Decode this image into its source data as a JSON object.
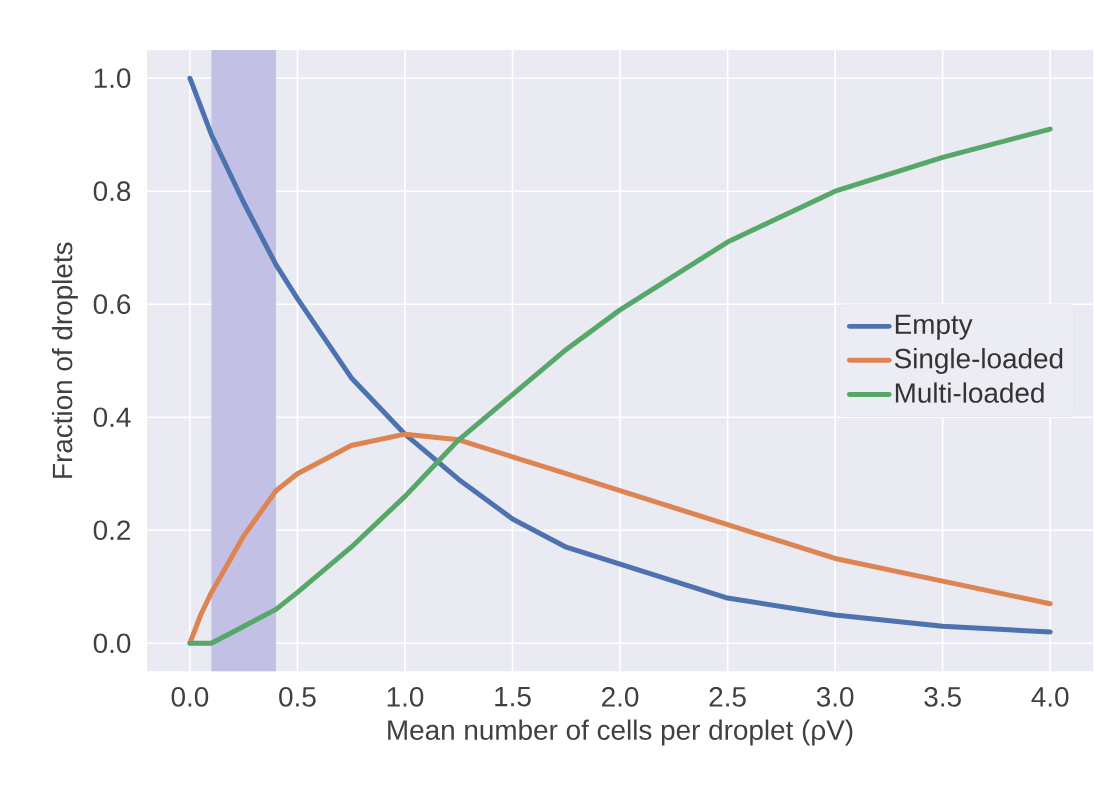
{
  "chart_data": {
    "type": "line",
    "xlabel": "Mean number of cells per droplet (ρV)",
    "ylabel": "Fraction of droplets",
    "x": [
      0,
      0.05,
      0.1,
      0.25,
      0.4,
      0.5,
      0.75,
      1,
      1.25,
      1.5,
      1.75,
      2,
      2.5,
      3,
      3.5,
      4
    ],
    "series": [
      {
        "name": "Empty",
        "color": "#4c72b0",
        "values": [
          1,
          0.95,
          0.9,
          0.78,
          0.67,
          0.61,
          0.47,
          0.37,
          0.29,
          0.22,
          0.17,
          0.14,
          0.08,
          0.05,
          0.03,
          0.02
        ]
      },
      {
        "name": "Single-loaded",
        "color": "#dd8452",
        "values": [
          0,
          0.05,
          0.09,
          0.19,
          0.27,
          0.3,
          0.35,
          0.37,
          0.36,
          0.33,
          0.3,
          0.27,
          0.21,
          0.15,
          0.11,
          0.07
        ]
      },
      {
        "name": "Multi-loaded",
        "color": "#55a868",
        "values": [
          0,
          0.0,
          0.0,
          0.03,
          0.06,
          0.09,
          0.17,
          0.26,
          0.36,
          0.44,
          0.52,
          0.59,
          0.71,
          0.8,
          0.86,
          0.91
        ]
      }
    ],
    "xlim": [
      -0.2,
      4.2
    ],
    "ylim": [
      -0.05,
      1.05
    ],
    "xticks": [
      {
        "value": 0,
        "label": "0.0"
      },
      0.5,
      {
        "value": 1,
        "label": "1.0"
      },
      1.5,
      {
        "value": 2,
        "label": "2.0"
      },
      2.5,
      {
        "value": 3,
        "label": "3.0"
      },
      3.5,
      {
        "value": 4,
        "label": "4.0"
      }
    ],
    "yticks": [
      {
        "value": 0,
        "label": "0.0"
      },
      0.2,
      0.4,
      0.6,
      0.8,
      {
        "value": 1,
        "label": "1.0"
      }
    ],
    "bands": [
      {
        "axis": "x",
        "from": 0.1,
        "to": 0.4,
        "color": "#c3c0e6"
      }
    ],
    "grid": true,
    "legend": "right",
    "marker": "none",
    "line_style": "solid"
  }
}
